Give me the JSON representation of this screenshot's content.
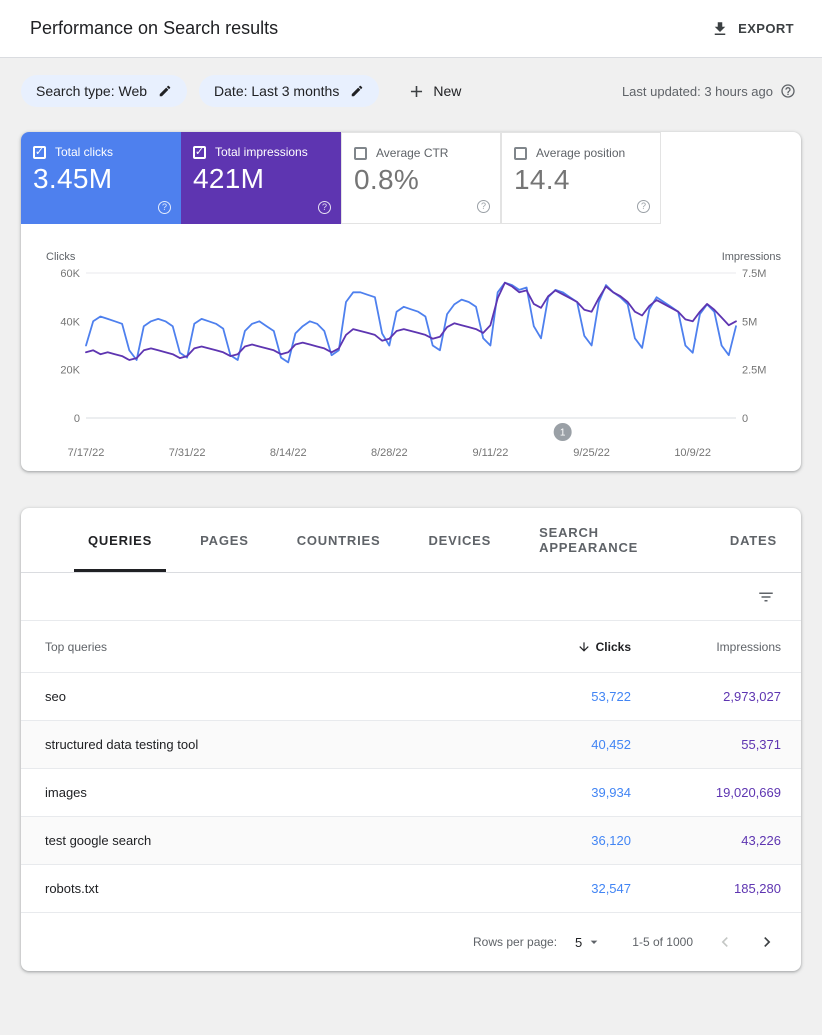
{
  "header": {
    "title": "Performance on Search results",
    "export": "EXPORT"
  },
  "filterbar": {
    "chips": [
      {
        "label": "Search type: Web"
      },
      {
        "label": "Date: Last 3 months"
      }
    ],
    "new_button": "New",
    "last_updated": "Last updated: 3 hours ago"
  },
  "metrics": [
    {
      "id": "clicks",
      "label": "Total clicks",
      "value": "3.45M",
      "checked": true,
      "bg": "#4e80ee"
    },
    {
      "id": "impressions",
      "label": "Total impressions",
      "value": "421M",
      "checked": true,
      "bg": "#5e35b1"
    },
    {
      "id": "ctr",
      "label": "Average CTR",
      "value": "0.8%",
      "checked": false,
      "bg": "#ffffff"
    },
    {
      "id": "position",
      "label": "Average position",
      "value": "14.4",
      "checked": false,
      "bg": "#ffffff"
    }
  ],
  "chart_data": {
    "type": "line",
    "left_axis": {
      "title": "Clicks",
      "ticks_bottom_to_top": [
        "0",
        "20K",
        "40K",
        "60K"
      ],
      "max": 60,
      "unit": "thousands"
    },
    "right_axis": {
      "title": "Impressions",
      "ticks_bottom_to_top": [
        "0",
        "2.5M",
        "5M",
        "7.5M"
      ],
      "max": 7.5,
      "unit": "millions"
    },
    "x_tick_labels": [
      "7/17/22",
      "7/31/22",
      "8/14/22",
      "8/28/22",
      "9/11/22",
      "9/25/22",
      "10/9/22"
    ],
    "x_tick_indices": [
      0,
      14,
      28,
      42,
      56,
      70,
      84
    ],
    "annotation": {
      "label": "1",
      "index": 66
    },
    "series": [
      {
        "name": "Clicks",
        "color": "#4e80ee",
        "axis": "left",
        "values": [
          30,
          40,
          42,
          41,
          40,
          39,
          28,
          24,
          38,
          40,
          41,
          40,
          38,
          27,
          25,
          39,
          41,
          40,
          39,
          37,
          26,
          24,
          36,
          39,
          40,
          38,
          36,
          25,
          23,
          35,
          38,
          40,
          39,
          36,
          26,
          28,
          48,
          52,
          52,
          51,
          50,
          35,
          30,
          44,
          46,
          45,
          44,
          42,
          30,
          28,
          43,
          47,
          49,
          48,
          46,
          33,
          30,
          52,
          56,
          55,
          53,
          54,
          38,
          33,
          50,
          53,
          52,
          50,
          48,
          34,
          30,
          48,
          55,
          52,
          50,
          47,
          33,
          29,
          45,
          50,
          48,
          46,
          44,
          30,
          27,
          43,
          47,
          44,
          30,
          26,
          38
        ]
      },
      {
        "name": "Impressions",
        "color": "#5e35b1",
        "axis": "right",
        "values": [
          3.4,
          3.5,
          3.3,
          3.4,
          3.3,
          3.2,
          3.0,
          3.1,
          3.5,
          3.6,
          3.5,
          3.4,
          3.3,
          3.1,
          3.2,
          3.6,
          3.7,
          3.6,
          3.5,
          3.4,
          3.2,
          3.3,
          3.7,
          3.8,
          3.7,
          3.6,
          3.5,
          3.3,
          3.4,
          3.8,
          3.9,
          3.8,
          3.7,
          3.6,
          3.4,
          3.6,
          4.3,
          4.6,
          4.5,
          4.4,
          4.3,
          4.0,
          4.1,
          4.5,
          4.6,
          4.5,
          4.4,
          4.3,
          4.1,
          4.2,
          4.7,
          4.9,
          4.8,
          4.7,
          4.6,
          4.4,
          4.8,
          6.2,
          7.0,
          6.8,
          6.5,
          6.6,
          5.9,
          5.7,
          6.3,
          6.6,
          6.4,
          6.2,
          6.0,
          5.6,
          5.5,
          6.2,
          6.8,
          6.5,
          6.3,
          6.0,
          5.5,
          5.3,
          5.8,
          6.1,
          5.9,
          5.7,
          5.5,
          5.1,
          5.0,
          5.5,
          5.9,
          5.6,
          5.2,
          4.8,
          5.0
        ]
      }
    ]
  },
  "tabs": [
    {
      "label": "QUERIES",
      "active": true
    },
    {
      "label": "PAGES",
      "active": false
    },
    {
      "label": "COUNTRIES",
      "active": false
    },
    {
      "label": "DEVICES",
      "active": false
    },
    {
      "label": "SEARCH APPEARANCE",
      "active": false
    },
    {
      "label": "DATES",
      "active": false
    }
  ],
  "table": {
    "columns": {
      "queries": "Top queries",
      "clicks": "Clicks",
      "impressions": "Impressions"
    },
    "clicks_color": "#4285f4",
    "impressions_color": "#5e35b1",
    "rows": [
      {
        "query": "seo",
        "clicks": "53,722",
        "impressions": "2,973,027"
      },
      {
        "query": "structured data testing tool",
        "clicks": "40,452",
        "impressions": "55,371"
      },
      {
        "query": "images",
        "clicks": "39,934",
        "impressions": "19,020,669"
      },
      {
        "query": "test google search",
        "clicks": "36,120",
        "impressions": "43,226"
      },
      {
        "query": "robots.txt",
        "clicks": "32,547",
        "impressions": "185,280"
      }
    ]
  },
  "pagination": {
    "rows_per_page_label": "Rows per page:",
    "rows_per_page_value": "5",
    "range": "1-5 of 1000"
  }
}
